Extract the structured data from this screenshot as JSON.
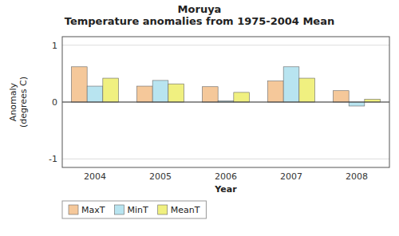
{
  "chart_data": {
    "type": "bar",
    "title": "Moruya\nTemperature anomalies from 1975-2004 Mean",
    "categories": [
      "2004",
      "2005",
      "2006",
      "2007",
      "2008"
    ],
    "series": [
      {
        "name": "MaxT",
        "color": "#F5C89A",
        "values": [
          0.62,
          0.28,
          0.27,
          0.37,
          0.2
        ]
      },
      {
        "name": "MinT",
        "color": "#B8E4F0",
        "values": [
          0.28,
          0.38,
          0.02,
          0.62,
          -0.07
        ]
      },
      {
        "name": "MeanT",
        "color": "#F0F080",
        "values": [
          0.42,
          0.32,
          0.17,
          0.42,
          0.05
        ]
      }
    ],
    "xlabel": "Year",
    "ylabel": "Anomaly\n(degrees C)",
    "ylim": [
      -1.15,
      1.15
    ],
    "yticks": [
      -1,
      0,
      1
    ],
    "grid": true,
    "legend": "lower left"
  }
}
